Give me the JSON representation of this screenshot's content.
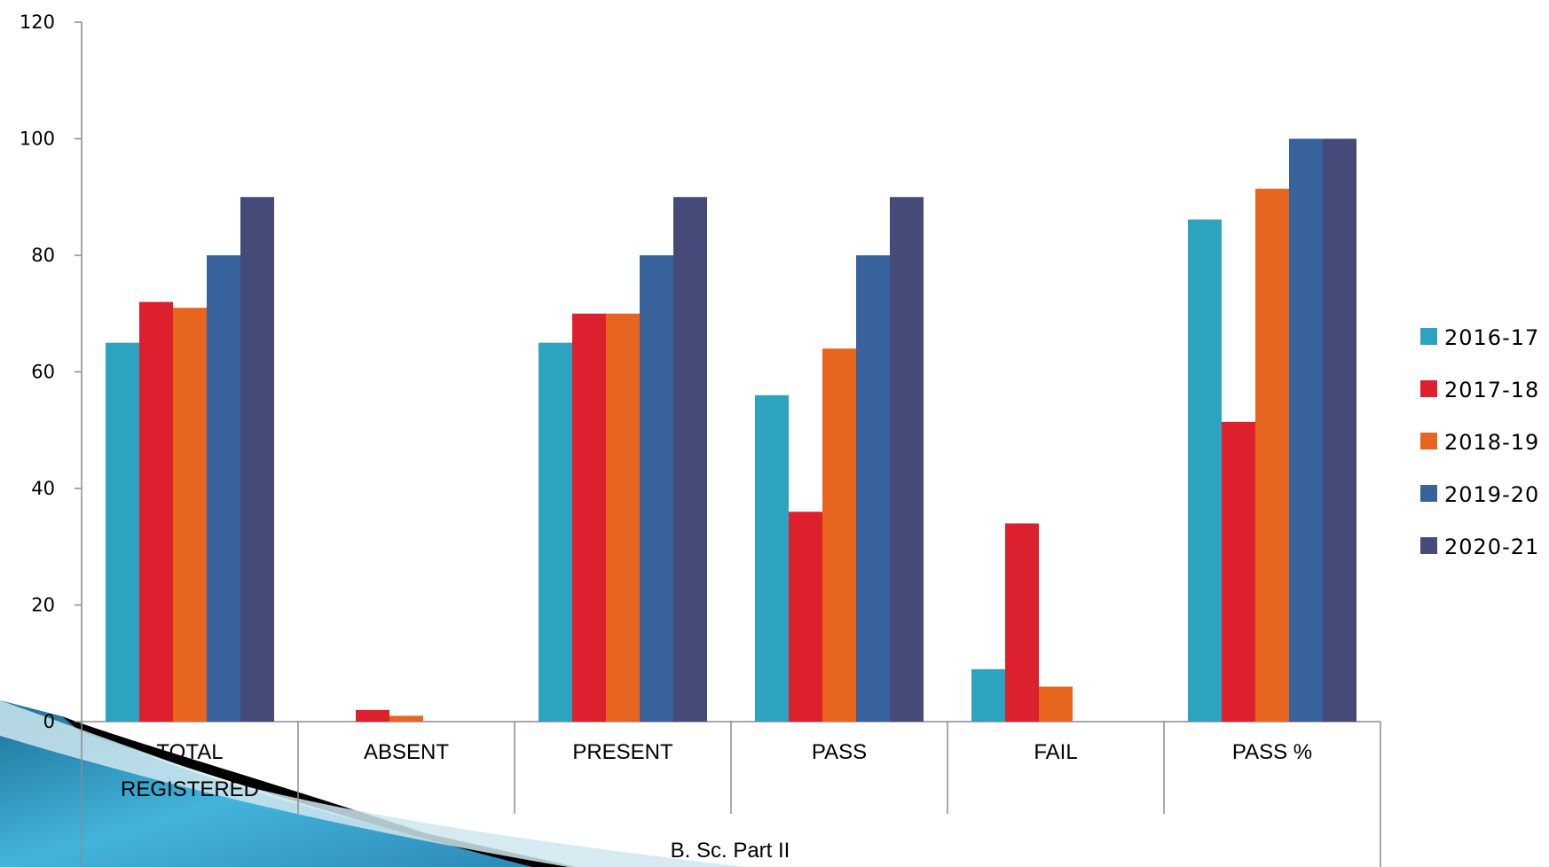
{
  "chart_data": {
    "type": "bar",
    "title": "",
    "ylabel": "",
    "xlabel": "B. Sc. Part II",
    "ylim": [
      0,
      120
    ],
    "yticks": [
      0,
      20,
      40,
      60,
      80,
      100,
      120
    ],
    "categories": [
      "TOTAL REGISTERED",
      "ABSENT",
      "PRESENT",
      "PASS",
      "FAIL",
      "PASS %"
    ],
    "series": [
      {
        "name": "2016-17",
        "color": "#2ea3c0",
        "values": [
          65,
          0,
          65,
          56,
          9,
          86.15
        ]
      },
      {
        "name": "2017-18",
        "color": "#dc202e",
        "values": [
          72,
          2,
          70,
          36,
          34,
          51.43
        ]
      },
      {
        "name": "2018-19",
        "color": "#e8651f",
        "values": [
          71,
          1,
          70,
          64,
          6,
          91.43
        ]
      },
      {
        "name": "2019-20",
        "color": "#37629b",
        "values": [
          80,
          0,
          80,
          80,
          0,
          100
        ]
      },
      {
        "name": "2020-21",
        "color": "#454a78",
        "values": [
          90,
          0,
          90,
          90,
          0,
          100
        ]
      }
    ],
    "grid": false,
    "legend_position": "right"
  }
}
